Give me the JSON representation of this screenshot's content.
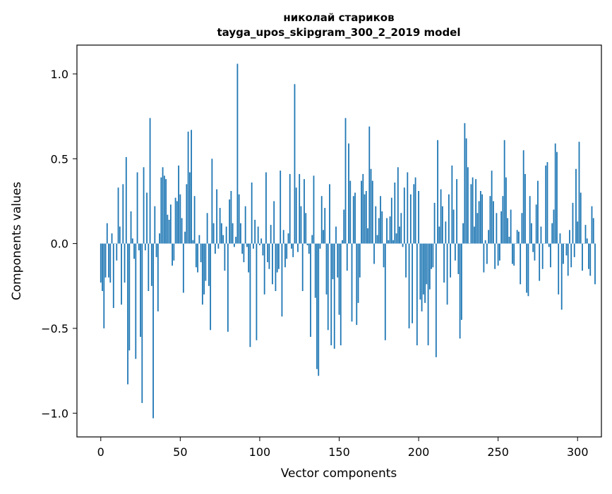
{
  "chart_data": {
    "type": "bar",
    "title_lines": [
      "николай стариков",
      "tayga_upos_skipgram_300_2_2019 model"
    ],
    "xlabel": "Vector components",
    "ylabel": "Components values",
    "xlim": [
      -15,
      315
    ],
    "ylim": [
      -1.14,
      1.17
    ],
    "x_ticks": [
      0,
      50,
      100,
      150,
      200,
      250,
      300
    ],
    "x_tick_labels": [
      "0",
      "50",
      "100",
      "150",
      "200",
      "250",
      "300"
    ],
    "y_ticks": [
      -1.0,
      -0.5,
      0.0,
      0.5,
      1.0
    ],
    "y_tick_labels": [
      "−1.0",
      "−0.5",
      "0.0",
      "0.5",
      "1.0"
    ],
    "grid": false,
    "bar_color": "#1f77b4",
    "values": [
      -0.23,
      -0.28,
      -0.5,
      -0.2,
      0.12,
      -0.2,
      -0.23,
      0.06,
      -0.38,
      0.0,
      -0.1,
      0.33,
      0.1,
      -0.36,
      0.35,
      -0.23,
      0.51,
      -0.83,
      -0.63,
      0.19,
      0.03,
      -0.09,
      -0.68,
      0.42,
      -0.04,
      -0.55,
      -0.94,
      0.45,
      -0.04,
      0.3,
      -0.28,
      0.74,
      -0.25,
      -1.03,
      0.22,
      -0.08,
      -0.4,
      0.06,
      0.39,
      0.45,
      0.4,
      0.38,
      0.17,
      0.14,
      0.23,
      -0.13,
      -0.1,
      0.27,
      0.25,
      0.46,
      0.29,
      0.15,
      -0.29,
      0.07,
      0.35,
      0.66,
      0.42,
      0.67,
      0.02,
      0.28,
      -0.14,
      -0.17,
      0.05,
      -0.11,
      -0.36,
      -0.3,
      -0.22,
      0.18,
      -0.25,
      -0.51,
      0.5,
      0.12,
      -0.06,
      0.32,
      -0.03,
      0.21,
      0.12,
      0.05,
      -0.16,
      0.1,
      -0.52,
      0.26,
      0.31,
      0.12,
      -0.02,
      0.04,
      1.06,
      0.29,
      0.12,
      -0.06,
      -0.11,
      0.22,
      -0.02,
      -0.17,
      -0.61,
      0.36,
      -0.03,
      0.14,
      -0.57,
      0.1,
      -0.01,
      0.03,
      -0.07,
      -0.3,
      0.42,
      -0.11,
      -0.15,
      0.11,
      -0.24,
      0.25,
      -0.28,
      -0.17,
      -0.15,
      0.43,
      -0.43,
      0.08,
      -0.14,
      -0.09,
      0.06,
      0.41,
      -0.03,
      -0.08,
      0.94,
      0.33,
      -0.05,
      0.41,
      0.22,
      -0.28,
      0.38,
      0.18,
      -0.01,
      -0.06,
      -0.55,
      0.05,
      0.4,
      -0.32,
      -0.74,
      -0.78,
      -0.03,
      0.28,
      0.08,
      0.21,
      -0.3,
      -0.51,
      0.35,
      -0.6,
      -0.21,
      -0.62,
      0.1,
      -0.2,
      -0.42,
      -0.6,
      0.02,
      0.2,
      0.74,
      -0.16,
      0.59,
      0.37,
      -0.46,
      0.28,
      0.3,
      -0.48,
      -0.35,
      -0.2,
      0.37,
      0.41,
      0.29,
      0.31,
      0.09,
      0.69,
      0.44,
      0.37,
      -0.12,
      0.22,
      0.05,
      0.15,
      0.28,
      0.19,
      -0.14,
      -0.57,
      0.15,
      0.02,
      0.16,
      0.27,
      0.02,
      0.36,
      0.06,
      0.45,
      0.1,
      0.18,
      -0.02,
      0.33,
      -0.2,
      0.42,
      -0.5,
      0.29,
      -0.47,
      0.35,
      0.39,
      -0.6,
      0.31,
      -0.33,
      -0.4,
      -0.3,
      -0.35,
      -0.24,
      -0.6,
      -0.27,
      -0.15,
      -0.14,
      0.24,
      -0.67,
      0.61,
      0.1,
      0.32,
      0.22,
      -0.23,
      0.13,
      -0.36,
      0.29,
      -0.2,
      0.46,
      0.2,
      -0.1,
      0.38,
      -0.18,
      -0.56,
      -0.45,
      0.12,
      0.71,
      0.62,
      0.45,
      0.0,
      0.35,
      0.39,
      0.1,
      0.38,
      0.18,
      0.25,
      0.31,
      0.29,
      -0.17,
      0.02,
      -0.12,
      0.08,
      0.28,
      0.43,
      0.25,
      -0.15,
      0.18,
      -0.13,
      -0.1,
      0.19,
      0.28,
      0.61,
      0.39,
      0.15,
      0.04,
      0.2,
      -0.12,
      -0.13,
      0.0,
      0.08,
      0.07,
      -0.24,
      0.18,
      0.55,
      0.41,
      -0.29,
      -0.31,
      0.28,
      0.12,
      -0.05,
      -0.1,
      0.23,
      0.37,
      -0.22,
      0.1,
      -0.15,
      0.0,
      0.46,
      0.48,
      -0.02,
      -0.14,
      0.12,
      0.2,
      0.59,
      0.54,
      -0.3,
      0.06,
      -0.39,
      -0.12,
      0.0,
      -0.07,
      -0.19,
      0.08,
      -0.14,
      0.24,
      -0.08,
      0.44,
      0.13,
      0.6,
      0.3,
      -0.16,
      0.0,
      0.11,
      0.03,
      -0.15,
      -0.19,
      0.22,
      0.15,
      -0.24
    ]
  }
}
